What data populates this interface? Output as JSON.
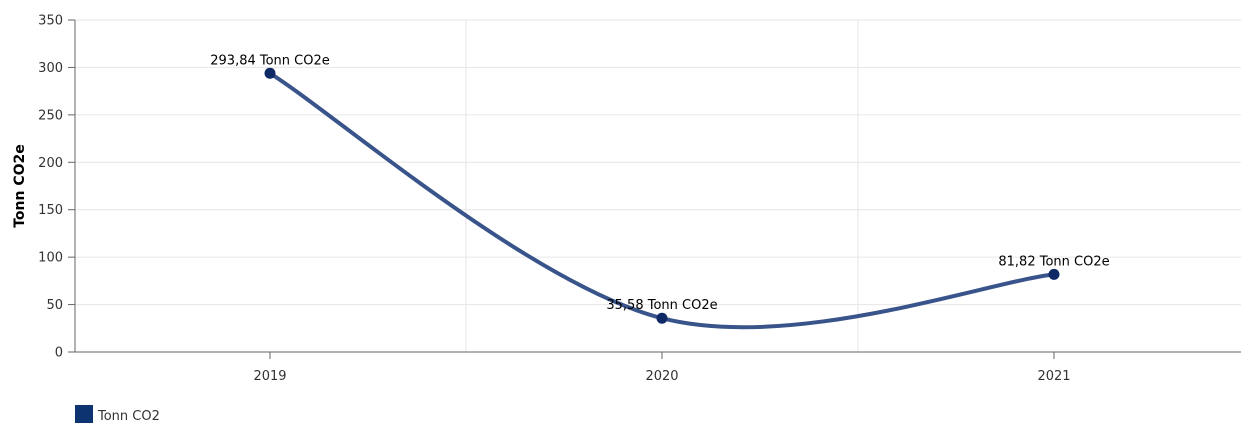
{
  "chart_data": {
    "type": "line",
    "ylabel": "Tonn CO2e",
    "categories": [
      "2019",
      "2020",
      "2021"
    ],
    "ylim": [
      0,
      350
    ],
    "yticks": [
      0,
      50,
      100,
      150,
      200,
      250,
      300,
      350
    ],
    "grid": true,
    "smooth": true,
    "legend_position": "bottom-left",
    "series": [
      {
        "name": "Tonn CO2",
        "color": "#38548a",
        "marker_color": "#0d2a66",
        "values": [
          293.84,
          35.58,
          81.82
        ],
        "labels": [
          "293,84 Tonn CO2e",
          "35,58 Tonn CO2e",
          "81,82 Tonn CO2e"
        ]
      }
    ],
    "legend_swatch_color": "#0d3370"
  }
}
